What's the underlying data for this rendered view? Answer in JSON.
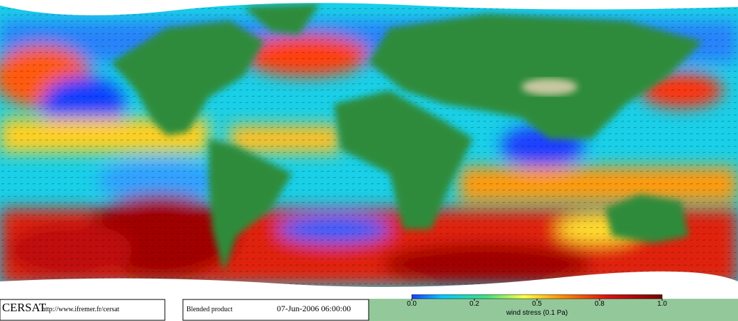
{
  "footer": {
    "logo": "CERSAT",
    "url": "http://www.ifremer.fr/cersat",
    "product": "Blended product",
    "datetime": "07-Jun-2006 06:00:00"
  },
  "colorbar": {
    "label": "wind stress (0.1 Pa)",
    "ticks": [
      {
        "value": 0,
        "label": "0.0"
      },
      0.2,
      0.5,
      0.8,
      {
        "value": 1,
        "label": "1.0"
      }
    ]
  }
}
